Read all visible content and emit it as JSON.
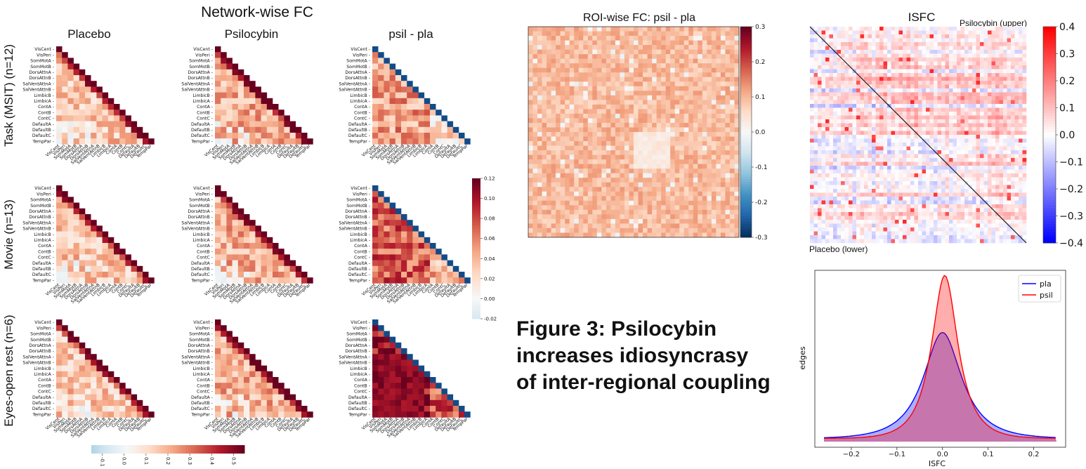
{
  "figure": {
    "network_title": "Network-wise FC",
    "columns": [
      "Placebo",
      "Psilocybin",
      "psil - pla"
    ],
    "rows": [
      "Task (MSIT) (n=12)",
      "Movie (n=13)",
      "Eyes-open rest (n=6)"
    ],
    "caption_lines": [
      "Figure 3: Psilocybin",
      "increases idiosyncrasy",
      "of inter-regional coupling"
    ]
  },
  "colors": {
    "dark_red": "#67001f",
    "red": "#d6604d",
    "light": "#fbe3d6",
    "blue": "#2166ac",
    "pla_line": "#0000ff",
    "psil_line": "#ff0000"
  },
  "chart_data": [
    {
      "type": "heatmap",
      "id": "network-fc-grid",
      "networks": [
        "VisCent",
        "VisPeri",
        "SomMotA",
        "SomMotB",
        "DorsAttnA",
        "DorsAttnB",
        "SalVentAttnA",
        "SalVentAttnB",
        "LimbicB",
        "LimbicA",
        "ContA",
        "ContB",
        "ContC",
        "DefaultA",
        "DefaultB",
        "DefaultC",
        "TempPar"
      ],
      "bottom_colorbar": {
        "min": -0.15,
        "max": 0.55,
        "ticks": [
          "-0.1",
          "0.0",
          "0.1",
          "0.2",
          "0.3",
          "0.4",
          "0.5"
        ]
      },
      "diff_colorbar": {
        "min": -0.02,
        "max": 0.12,
        "ticks": [
          "0.12",
          "0.10",
          "0.08",
          "0.06",
          "0.04",
          "0.02",
          "0.00",
          "-0.02"
        ]
      }
    },
    {
      "type": "heatmap",
      "id": "roi-fc",
      "title": "ROI-wise FC: psil - pla",
      "colorbar": {
        "min": -0.3,
        "max": 0.3,
        "ticks": [
          "0.3",
          "0.2",
          "0.1",
          "0.0",
          "-0.1",
          "-0.2",
          "-0.3"
        ]
      }
    },
    {
      "type": "heatmap",
      "id": "isfc",
      "title": "ISFC",
      "upper_label": "Psilocybin (upper)",
      "lower_label": "Placebo (lower)",
      "colorbar": {
        "min": -0.4,
        "max": 0.4,
        "ticks": [
          "0.4",
          "0.3",
          "0.2",
          "0.1",
          "0.0",
          "−0.1",
          "−0.2",
          "−0.3",
          "−0.4"
        ]
      }
    },
    {
      "type": "area",
      "id": "isfc-distribution",
      "xlabel": "ISFC",
      "ylabel": "edges",
      "xlim": [
        -0.28,
        0.27
      ],
      "xticks": [
        "−0.2",
        "−0.1",
        "0.0",
        "0.1",
        "0.2"
      ],
      "xtick_values": [
        -0.2,
        -0.1,
        0.0,
        0.1,
        0.2
      ],
      "series": [
        {
          "name": "pla",
          "peak": 0.0,
          "peak_height": 0.65,
          "width": 0.055
        },
        {
          "name": "psil",
          "peak": 0.005,
          "peak_height": 1.0,
          "width": 0.038
        }
      ],
      "legend": "top-right"
    }
  ]
}
